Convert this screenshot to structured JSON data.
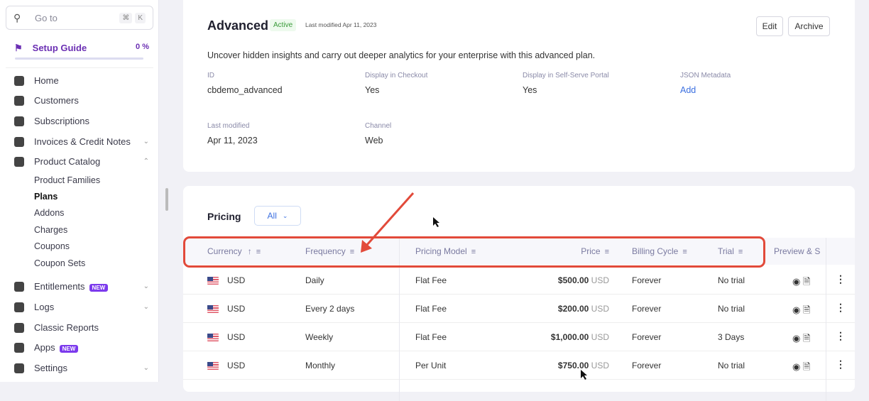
{
  "sidebar": {
    "search": {
      "placeholder": "Go to",
      "shortcut_1": "⌘",
      "shortcut_2": "K"
    },
    "setup_guide": {
      "label": "Setup Guide",
      "progress": "0 %",
      "progress_value": 0
    },
    "items": [
      {
        "label": "Home",
        "icon": "home-icon"
      },
      {
        "label": "Customers",
        "icon": "customers-icon"
      },
      {
        "label": "Subscriptions",
        "icon": "subscriptions-icon"
      },
      {
        "label": "Invoices & Credit Notes",
        "icon": "invoice-icon"
      },
      {
        "label": "Product Catalog",
        "icon": "catalog-icon"
      },
      {
        "label": "Entitlements",
        "icon": "crown-icon",
        "badge": "NEW"
      },
      {
        "label": "Logs",
        "icon": "logs-icon"
      },
      {
        "label": "Classic Reports",
        "icon": "reports-icon"
      },
      {
        "label": "Apps",
        "icon": "apps-icon",
        "badge": "NEW"
      },
      {
        "label": "Settings",
        "icon": "gear-icon"
      }
    ],
    "catalog_sub": [
      "Product Families",
      "Plans",
      "Addons",
      "Charges",
      "Coupons",
      "Coupon Sets"
    ]
  },
  "plan": {
    "title": "Advanced",
    "status": "Active",
    "last_modified_short": "Last modified Apr 11, 2023",
    "edit": "Edit",
    "archive": "Archive",
    "description": "Uncover hidden insights and carry out deeper analytics for your enterprise with this advanced plan.",
    "fields": [
      {
        "label": "ID",
        "value": "cbdemo_advanced"
      },
      {
        "label": "Display in Checkout",
        "value": "Yes"
      },
      {
        "label": "Display in Self-Serve Portal",
        "value": "Yes"
      },
      {
        "label": "JSON Metadata",
        "value": "Add"
      },
      {
        "label": "Last modified",
        "value": "Apr 11, 2023"
      },
      {
        "label": "Channel",
        "value": "Web"
      }
    ]
  },
  "pricing": {
    "title": "Pricing",
    "filter": "All",
    "columns": [
      "Currency",
      "Frequency",
      "Pricing Model",
      "Price",
      "Billing Cycle",
      "Trial",
      "Preview & S"
    ],
    "rows": [
      {
        "currency": "USD",
        "frequency": "Daily",
        "model": "Flat Fee",
        "price": "$500.00",
        "price_cur": "USD",
        "cycle": "Forever",
        "trial": "No trial"
      },
      {
        "currency": "USD",
        "frequency": "Every 2 days",
        "model": "Flat Fee",
        "price": "$200.00",
        "price_cur": "USD",
        "cycle": "Forever",
        "trial": "No trial"
      },
      {
        "currency": "USD",
        "frequency": "Weekly",
        "model": "Flat Fee",
        "price": "$1,000.00",
        "price_cur": "USD",
        "cycle": "Forever",
        "trial": "3 Days"
      },
      {
        "currency": "USD",
        "frequency": "Monthly",
        "model": "Per Unit",
        "price": "$750.00",
        "price_cur": "USD",
        "cycle": "Forever",
        "trial": "No trial"
      }
    ]
  },
  "colors": {
    "accent": "#6b2fb3",
    "link": "#3b6fe0",
    "highlight": "#e24a3a",
    "active": "#3a9a3a"
  }
}
